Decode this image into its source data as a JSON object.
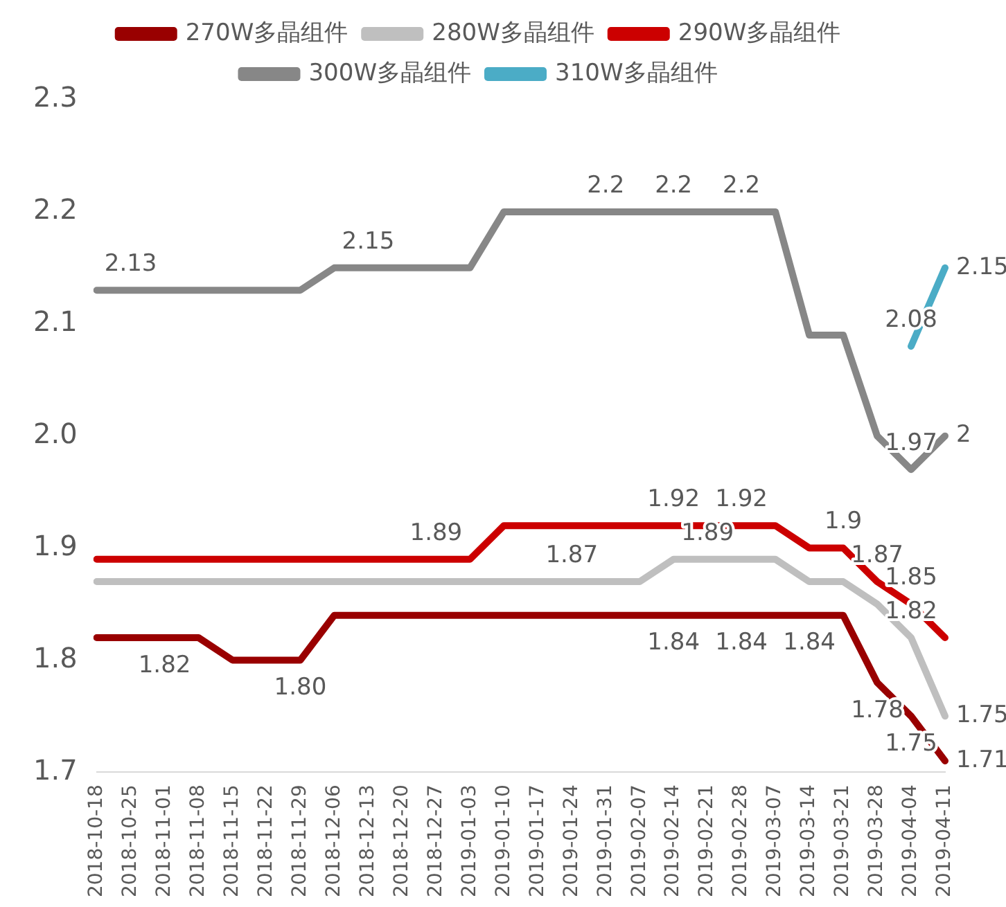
{
  "chart_data": {
    "type": "line",
    "categories": [
      "2018-10-18",
      "2018-10-25",
      "2018-11-01",
      "2018-11-08",
      "2018-11-15",
      "2018-11-22",
      "2018-11-29",
      "2018-12-06",
      "2018-12-13",
      "2018-12-20",
      "2018-12-27",
      "2019-01-03",
      "2019-01-10",
      "2019-01-17",
      "2019-01-24",
      "2019-01-31",
      "2019-02-07",
      "2019-02-14",
      "2019-02-21",
      "2019-02-28",
      "2019-03-07",
      "2019-03-14",
      "2019-03-21",
      "2019-03-28",
      "2019-04-04",
      "2019-04-11"
    ],
    "series": [
      {
        "name": "270W多晶组件",
        "color": "#990000",
        "values": [
          1.82,
          1.82,
          1.82,
          1.82,
          1.8,
          1.8,
          1.8,
          1.84,
          1.84,
          1.84,
          1.84,
          1.84,
          1.84,
          1.84,
          1.84,
          1.84,
          1.84,
          1.84,
          1.84,
          1.84,
          1.84,
          1.84,
          1.84,
          1.78,
          1.75,
          1.71
        ],
        "value_labels": [
          null,
          null,
          "1.82",
          null,
          null,
          null,
          "1.80",
          null,
          null,
          null,
          null,
          null,
          null,
          null,
          null,
          null,
          null,
          "1.84",
          null,
          "1.84",
          null,
          "1.84",
          null,
          "1.78",
          "1.75",
          "1.71"
        ]
      },
      {
        "name": "280W多晶组件",
        "color": "#bfbfbf",
        "values": [
          1.87,
          1.87,
          1.87,
          1.87,
          1.87,
          1.87,
          1.87,
          1.87,
          1.87,
          1.87,
          1.87,
          1.87,
          1.87,
          1.87,
          1.87,
          1.87,
          1.87,
          1.89,
          1.89,
          1.89,
          1.89,
          1.87,
          1.87,
          1.85,
          1.82,
          1.75
        ],
        "value_labels": [
          null,
          null,
          null,
          null,
          null,
          null,
          null,
          null,
          null,
          null,
          null,
          null,
          null,
          null,
          "1.87",
          null,
          null,
          null,
          "1.89",
          null,
          null,
          null,
          null,
          null,
          "1.82",
          "1.75"
        ]
      },
      {
        "name": "290W多晶组件",
        "color": "#cc0000",
        "values": [
          1.89,
          1.89,
          1.89,
          1.89,
          1.89,
          1.89,
          1.89,
          1.89,
          1.89,
          1.89,
          1.89,
          1.89,
          1.92,
          1.92,
          1.92,
          1.92,
          1.92,
          1.92,
          1.92,
          1.92,
          1.92,
          1.9,
          1.9,
          1.87,
          1.85,
          1.82
        ],
        "value_labels": [
          null,
          null,
          null,
          null,
          null,
          null,
          null,
          null,
          null,
          null,
          "1.89",
          null,
          null,
          null,
          null,
          null,
          null,
          "1.92",
          null,
          "1.92",
          null,
          null,
          "1.9",
          "1.87",
          "1.85",
          null
        ]
      },
      {
        "name": "300W多晶组件",
        "color": "#878787",
        "values": [
          2.13,
          2.13,
          2.13,
          2.13,
          2.13,
          2.13,
          2.13,
          2.15,
          2.15,
          2.15,
          2.15,
          2.15,
          2.2,
          2.2,
          2.2,
          2.2,
          2.2,
          2.2,
          2.2,
          2.2,
          2.2,
          2.09,
          2.09,
          2.0,
          1.97,
          2.0
        ],
        "value_labels": [
          null,
          "2.13",
          null,
          null,
          null,
          null,
          null,
          null,
          "2.15",
          null,
          null,
          null,
          null,
          null,
          null,
          "2.2",
          null,
          "2.2",
          null,
          "2.2",
          null,
          null,
          null,
          null,
          "1.97",
          "2"
        ]
      },
      {
        "name": "310W多晶组件",
        "color": "#4bacc6",
        "values": [
          null,
          null,
          null,
          null,
          null,
          null,
          null,
          null,
          null,
          null,
          null,
          null,
          null,
          null,
          null,
          null,
          null,
          null,
          null,
          null,
          null,
          null,
          null,
          null,
          2.08,
          2.15
        ],
        "value_labels": [
          null,
          null,
          null,
          null,
          null,
          null,
          null,
          null,
          null,
          null,
          null,
          null,
          null,
          null,
          null,
          null,
          null,
          null,
          null,
          null,
          null,
          null,
          null,
          null,
          "2.08",
          "2.15"
        ]
      }
    ],
    "ylim": [
      1.7,
      2.3
    ],
    "yticks": [
      1.7,
      1.8,
      1.9,
      {
        "value": 2,
        "label": "2.0"
      },
      2.1,
      2.2,
      2.3
    ],
    "grid": false,
    "legend": "top",
    "marker": "none",
    "line_style": "solid"
  }
}
